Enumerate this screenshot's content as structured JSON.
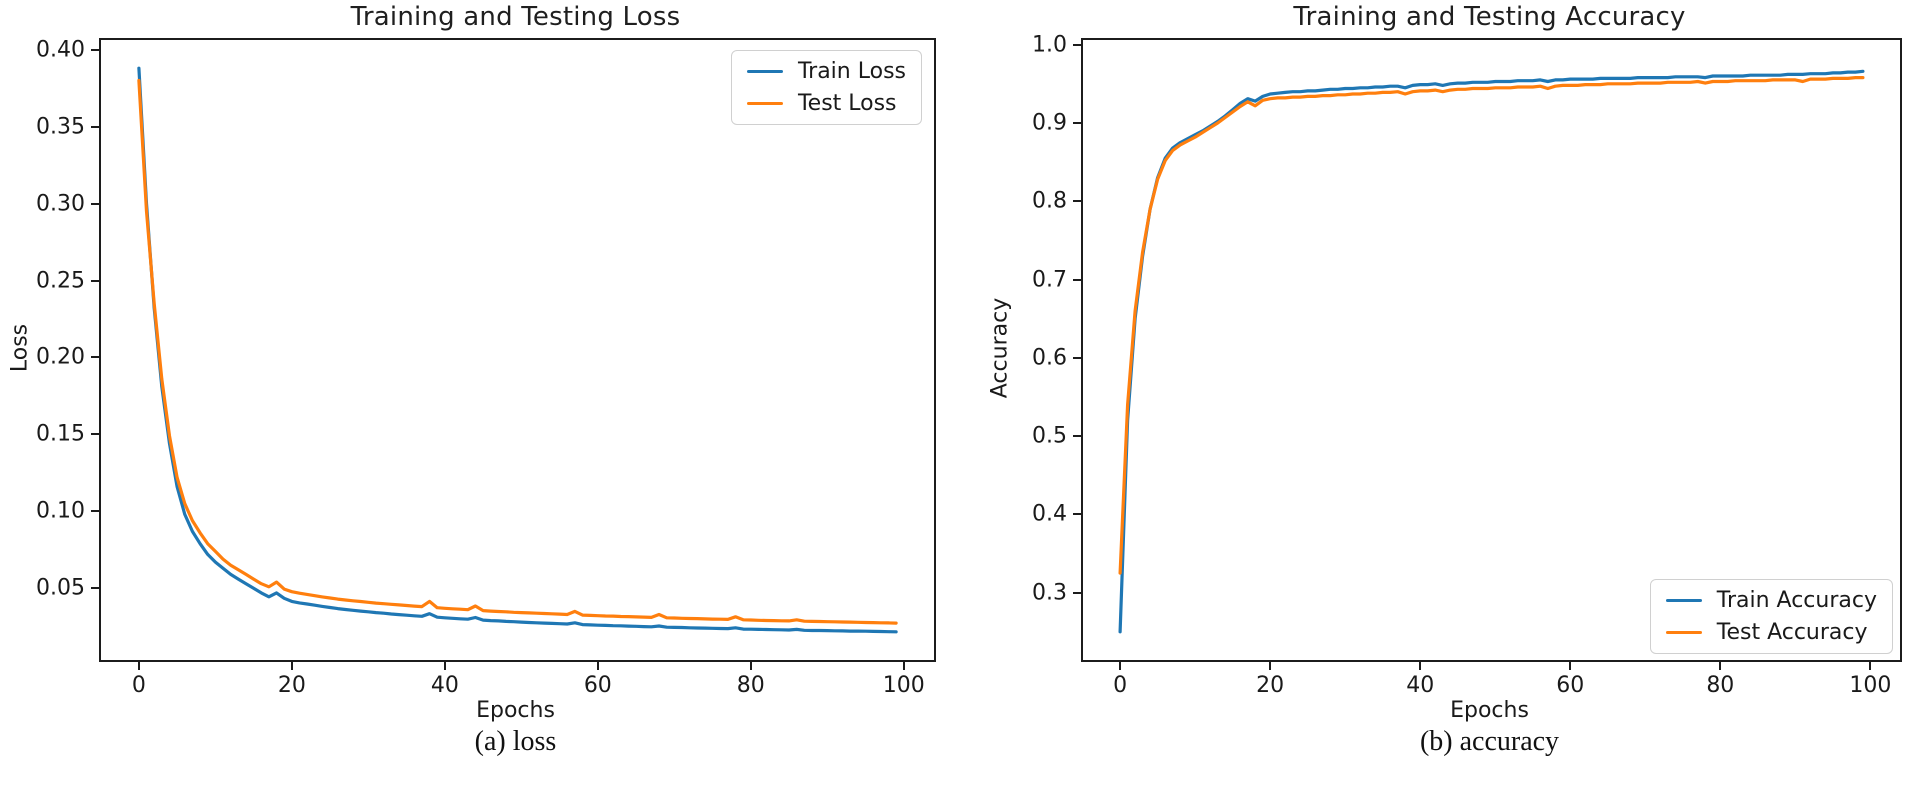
{
  "style": {
    "background": "#ffffff",
    "axis_color": "#1c1c1c",
    "text_color": "#1a1a1a"
  },
  "chart_data": [
    {
      "type": "line",
      "title": "Training and Testing Loss",
      "xlabel": "Epochs",
      "ylabel": "Loss",
      "caption": "(a) loss",
      "grid": false,
      "legend_position": "top-right",
      "xlim": [
        -4.95,
        103.95
      ],
      "ylim": [
        0.0034,
        0.4063
      ],
      "xtick_values": [
        0,
        20,
        40,
        60,
        80,
        100
      ],
      "xtick_labels": [
        "0",
        "20",
        "40",
        "60",
        "80",
        "100"
      ],
      "ytick_values": [
        0.05,
        0.1,
        0.15,
        0.2,
        0.25,
        0.3,
        0.35,
        0.4
      ],
      "ytick_labels": [
        "0.05",
        "0.10",
        "0.15",
        "0.20",
        "0.25",
        "0.30",
        "0.35",
        "0.40"
      ],
      "x": [
        0,
        1,
        2,
        3,
        4,
        5,
        6,
        7,
        8,
        9,
        10,
        11,
        12,
        13,
        14,
        15,
        16,
        17,
        18,
        19,
        20,
        21,
        22,
        23,
        24,
        25,
        26,
        27,
        28,
        29,
        30,
        31,
        32,
        33,
        34,
        35,
        36,
        37,
        38,
        39,
        40,
        41,
        42,
        43,
        44,
        45,
        46,
        47,
        48,
        49,
        50,
        51,
        52,
        53,
        54,
        55,
        56,
        57,
        58,
        59,
        60,
        61,
        62,
        63,
        64,
        65,
        66,
        67,
        68,
        69,
        70,
        71,
        72,
        73,
        74,
        75,
        76,
        77,
        78,
        79,
        80,
        81,
        82,
        83,
        84,
        85,
        86,
        87,
        88,
        89,
        90,
        91,
        92,
        93,
        94,
        95,
        96,
        97,
        98,
        99
      ],
      "series": [
        {
          "name": "Train Loss",
          "color": "#1f77b4",
          "values": [
            0.388,
            0.3,
            0.232,
            0.181,
            0.144,
            0.116,
            0.098,
            0.087,
            0.079,
            0.072,
            0.067,
            0.063,
            0.059,
            0.056,
            0.053,
            0.05,
            0.047,
            0.0445,
            0.047,
            0.0435,
            0.0415,
            0.0405,
            0.0398,
            0.039,
            0.0382,
            0.0375,
            0.0368,
            0.0362,
            0.0357,
            0.0352,
            0.0347,
            0.0342,
            0.0338,
            0.0333,
            0.0329,
            0.0325,
            0.0321,
            0.0318,
            0.0335,
            0.0312,
            0.0308,
            0.0305,
            0.0302,
            0.0299,
            0.031,
            0.0293,
            0.029,
            0.0288,
            0.0285,
            0.0283,
            0.028,
            0.0278,
            0.0276,
            0.0274,
            0.0272,
            0.027,
            0.0268,
            0.0276,
            0.0264,
            0.0262,
            0.026,
            0.0259,
            0.0257,
            0.0256,
            0.0254,
            0.0253,
            0.0251,
            0.025,
            0.0255,
            0.0247,
            0.0246,
            0.0245,
            0.0243,
            0.0242,
            0.0241,
            0.024,
            0.0239,
            0.0238,
            0.0243,
            0.0235,
            0.0234,
            0.0233,
            0.0232,
            0.0231,
            0.023,
            0.0229,
            0.0233,
            0.0227,
            0.0226,
            0.0226,
            0.0225,
            0.0224,
            0.0223,
            0.0222,
            0.0222,
            0.0221,
            0.022,
            0.0219,
            0.0218,
            0.0217
          ]
        },
        {
          "name": "Test Loss",
          "color": "#ff7f0e",
          "values": [
            0.38,
            0.295,
            0.235,
            0.186,
            0.149,
            0.122,
            0.105,
            0.094,
            0.086,
            0.079,
            0.074,
            0.069,
            0.065,
            0.062,
            0.059,
            0.056,
            0.053,
            0.051,
            0.054,
            0.0495,
            0.0478,
            0.0468,
            0.046,
            0.0452,
            0.0444,
            0.0437,
            0.043,
            0.0424,
            0.0419,
            0.0414,
            0.0409,
            0.0404,
            0.04,
            0.0396,
            0.0392,
            0.0388,
            0.0384,
            0.0381,
            0.0415,
            0.0374,
            0.037,
            0.0367,
            0.0364,
            0.0361,
            0.0385,
            0.0355,
            0.0352,
            0.0349,
            0.0347,
            0.0344,
            0.0342,
            0.034,
            0.0338,
            0.0336,
            0.0334,
            0.0332,
            0.033,
            0.035,
            0.0326,
            0.0324,
            0.0322,
            0.032,
            0.0319,
            0.0317,
            0.0316,
            0.0314,
            0.0313,
            0.0311,
            0.033,
            0.0308,
            0.0307,
            0.0305,
            0.0304,
            0.0303,
            0.0301,
            0.03,
            0.0299,
            0.0298,
            0.0315,
            0.0295,
            0.0294,
            0.0292,
            0.0291,
            0.029,
            0.0289,
            0.0288,
            0.0295,
            0.0286,
            0.0285,
            0.0284,
            0.0283,
            0.0282,
            0.0281,
            0.028,
            0.0279,
            0.0278,
            0.0277,
            0.0276,
            0.0275,
            0.0274
          ]
        }
      ]
    },
    {
      "type": "line",
      "title": "Training and Testing Accuracy",
      "xlabel": "Epochs",
      "ylabel": "Accuracy",
      "caption": "(b) accuracy",
      "grid": false,
      "legend_position": "bottom-right",
      "xlim": [
        -4.95,
        103.95
      ],
      "ylim": [
        0.214,
        1.006
      ],
      "xtick_values": [
        0,
        20,
        40,
        60,
        80,
        100
      ],
      "xtick_labels": [
        "0",
        "20",
        "40",
        "60",
        "80",
        "100"
      ],
      "ytick_values": [
        0.3,
        0.4,
        0.5,
        0.6,
        0.7,
        0.8,
        0.9,
        1.0
      ],
      "ytick_labels": [
        "0.3",
        "0.4",
        "0.5",
        "0.6",
        "0.7",
        "0.8",
        "0.9",
        "1.0"
      ],
      "x": [
        0,
        1,
        2,
        3,
        4,
        5,
        6,
        7,
        8,
        9,
        10,
        11,
        12,
        13,
        14,
        15,
        16,
        17,
        18,
        19,
        20,
        21,
        22,
        23,
        24,
        25,
        26,
        27,
        28,
        29,
        30,
        31,
        32,
        33,
        34,
        35,
        36,
        37,
        38,
        39,
        40,
        41,
        42,
        43,
        44,
        45,
        46,
        47,
        48,
        49,
        50,
        51,
        52,
        53,
        54,
        55,
        56,
        57,
        58,
        59,
        60,
        61,
        62,
        63,
        64,
        65,
        66,
        67,
        68,
        69,
        70,
        71,
        72,
        73,
        74,
        75,
        76,
        77,
        78,
        79,
        80,
        81,
        82,
        83,
        84,
        85,
        86,
        87,
        88,
        89,
        90,
        91,
        92,
        93,
        94,
        95,
        96,
        97,
        98,
        99
      ],
      "series": [
        {
          "name": "Train Accuracy",
          "color": "#1f77b4",
          "values": [
            0.25,
            0.52,
            0.65,
            0.73,
            0.79,
            0.83,
            0.855,
            0.868,
            0.875,
            0.88,
            0.885,
            0.89,
            0.896,
            0.902,
            0.909,
            0.917,
            0.925,
            0.931,
            0.928,
            0.934,
            0.937,
            0.938,
            0.939,
            0.94,
            0.94,
            0.941,
            0.941,
            0.942,
            0.943,
            0.943,
            0.944,
            0.944,
            0.945,
            0.945,
            0.946,
            0.946,
            0.947,
            0.947,
            0.945,
            0.948,
            0.949,
            0.949,
            0.95,
            0.948,
            0.95,
            0.951,
            0.951,
            0.952,
            0.952,
            0.952,
            0.953,
            0.953,
            0.953,
            0.954,
            0.954,
            0.954,
            0.955,
            0.953,
            0.955,
            0.955,
            0.956,
            0.956,
            0.956,
            0.956,
            0.957,
            0.957,
            0.957,
            0.957,
            0.957,
            0.958,
            0.958,
            0.958,
            0.958,
            0.958,
            0.959,
            0.959,
            0.959,
            0.959,
            0.958,
            0.96,
            0.96,
            0.96,
            0.96,
            0.96,
            0.961,
            0.961,
            0.961,
            0.961,
            0.961,
            0.962,
            0.962,
            0.962,
            0.963,
            0.963,
            0.963,
            0.964,
            0.964,
            0.965,
            0.965,
            0.966
          ]
        },
        {
          "name": "Test Accuracy",
          "color": "#ff7f0e",
          "values": [
            0.325,
            0.54,
            0.66,
            0.735,
            0.79,
            0.828,
            0.852,
            0.865,
            0.872,
            0.877,
            0.882,
            0.888,
            0.894,
            0.9,
            0.907,
            0.914,
            0.921,
            0.927,
            0.922,
            0.929,
            0.931,
            0.932,
            0.932,
            0.933,
            0.933,
            0.934,
            0.934,
            0.935,
            0.935,
            0.936,
            0.936,
            0.937,
            0.937,
            0.938,
            0.938,
            0.939,
            0.939,
            0.94,
            0.937,
            0.94,
            0.941,
            0.941,
            0.942,
            0.94,
            0.942,
            0.943,
            0.943,
            0.944,
            0.944,
            0.944,
            0.945,
            0.945,
            0.945,
            0.946,
            0.946,
            0.946,
            0.947,
            0.944,
            0.947,
            0.948,
            0.948,
            0.948,
            0.949,
            0.949,
            0.949,
            0.95,
            0.95,
            0.95,
            0.95,
            0.951,
            0.951,
            0.951,
            0.951,
            0.952,
            0.952,
            0.952,
            0.952,
            0.953,
            0.951,
            0.953,
            0.953,
            0.953,
            0.954,
            0.954,
            0.954,
            0.954,
            0.954,
            0.955,
            0.955,
            0.955,
            0.955,
            0.953,
            0.956,
            0.956,
            0.956,
            0.957,
            0.957,
            0.957,
            0.958,
            0.958
          ]
        }
      ]
    }
  ]
}
